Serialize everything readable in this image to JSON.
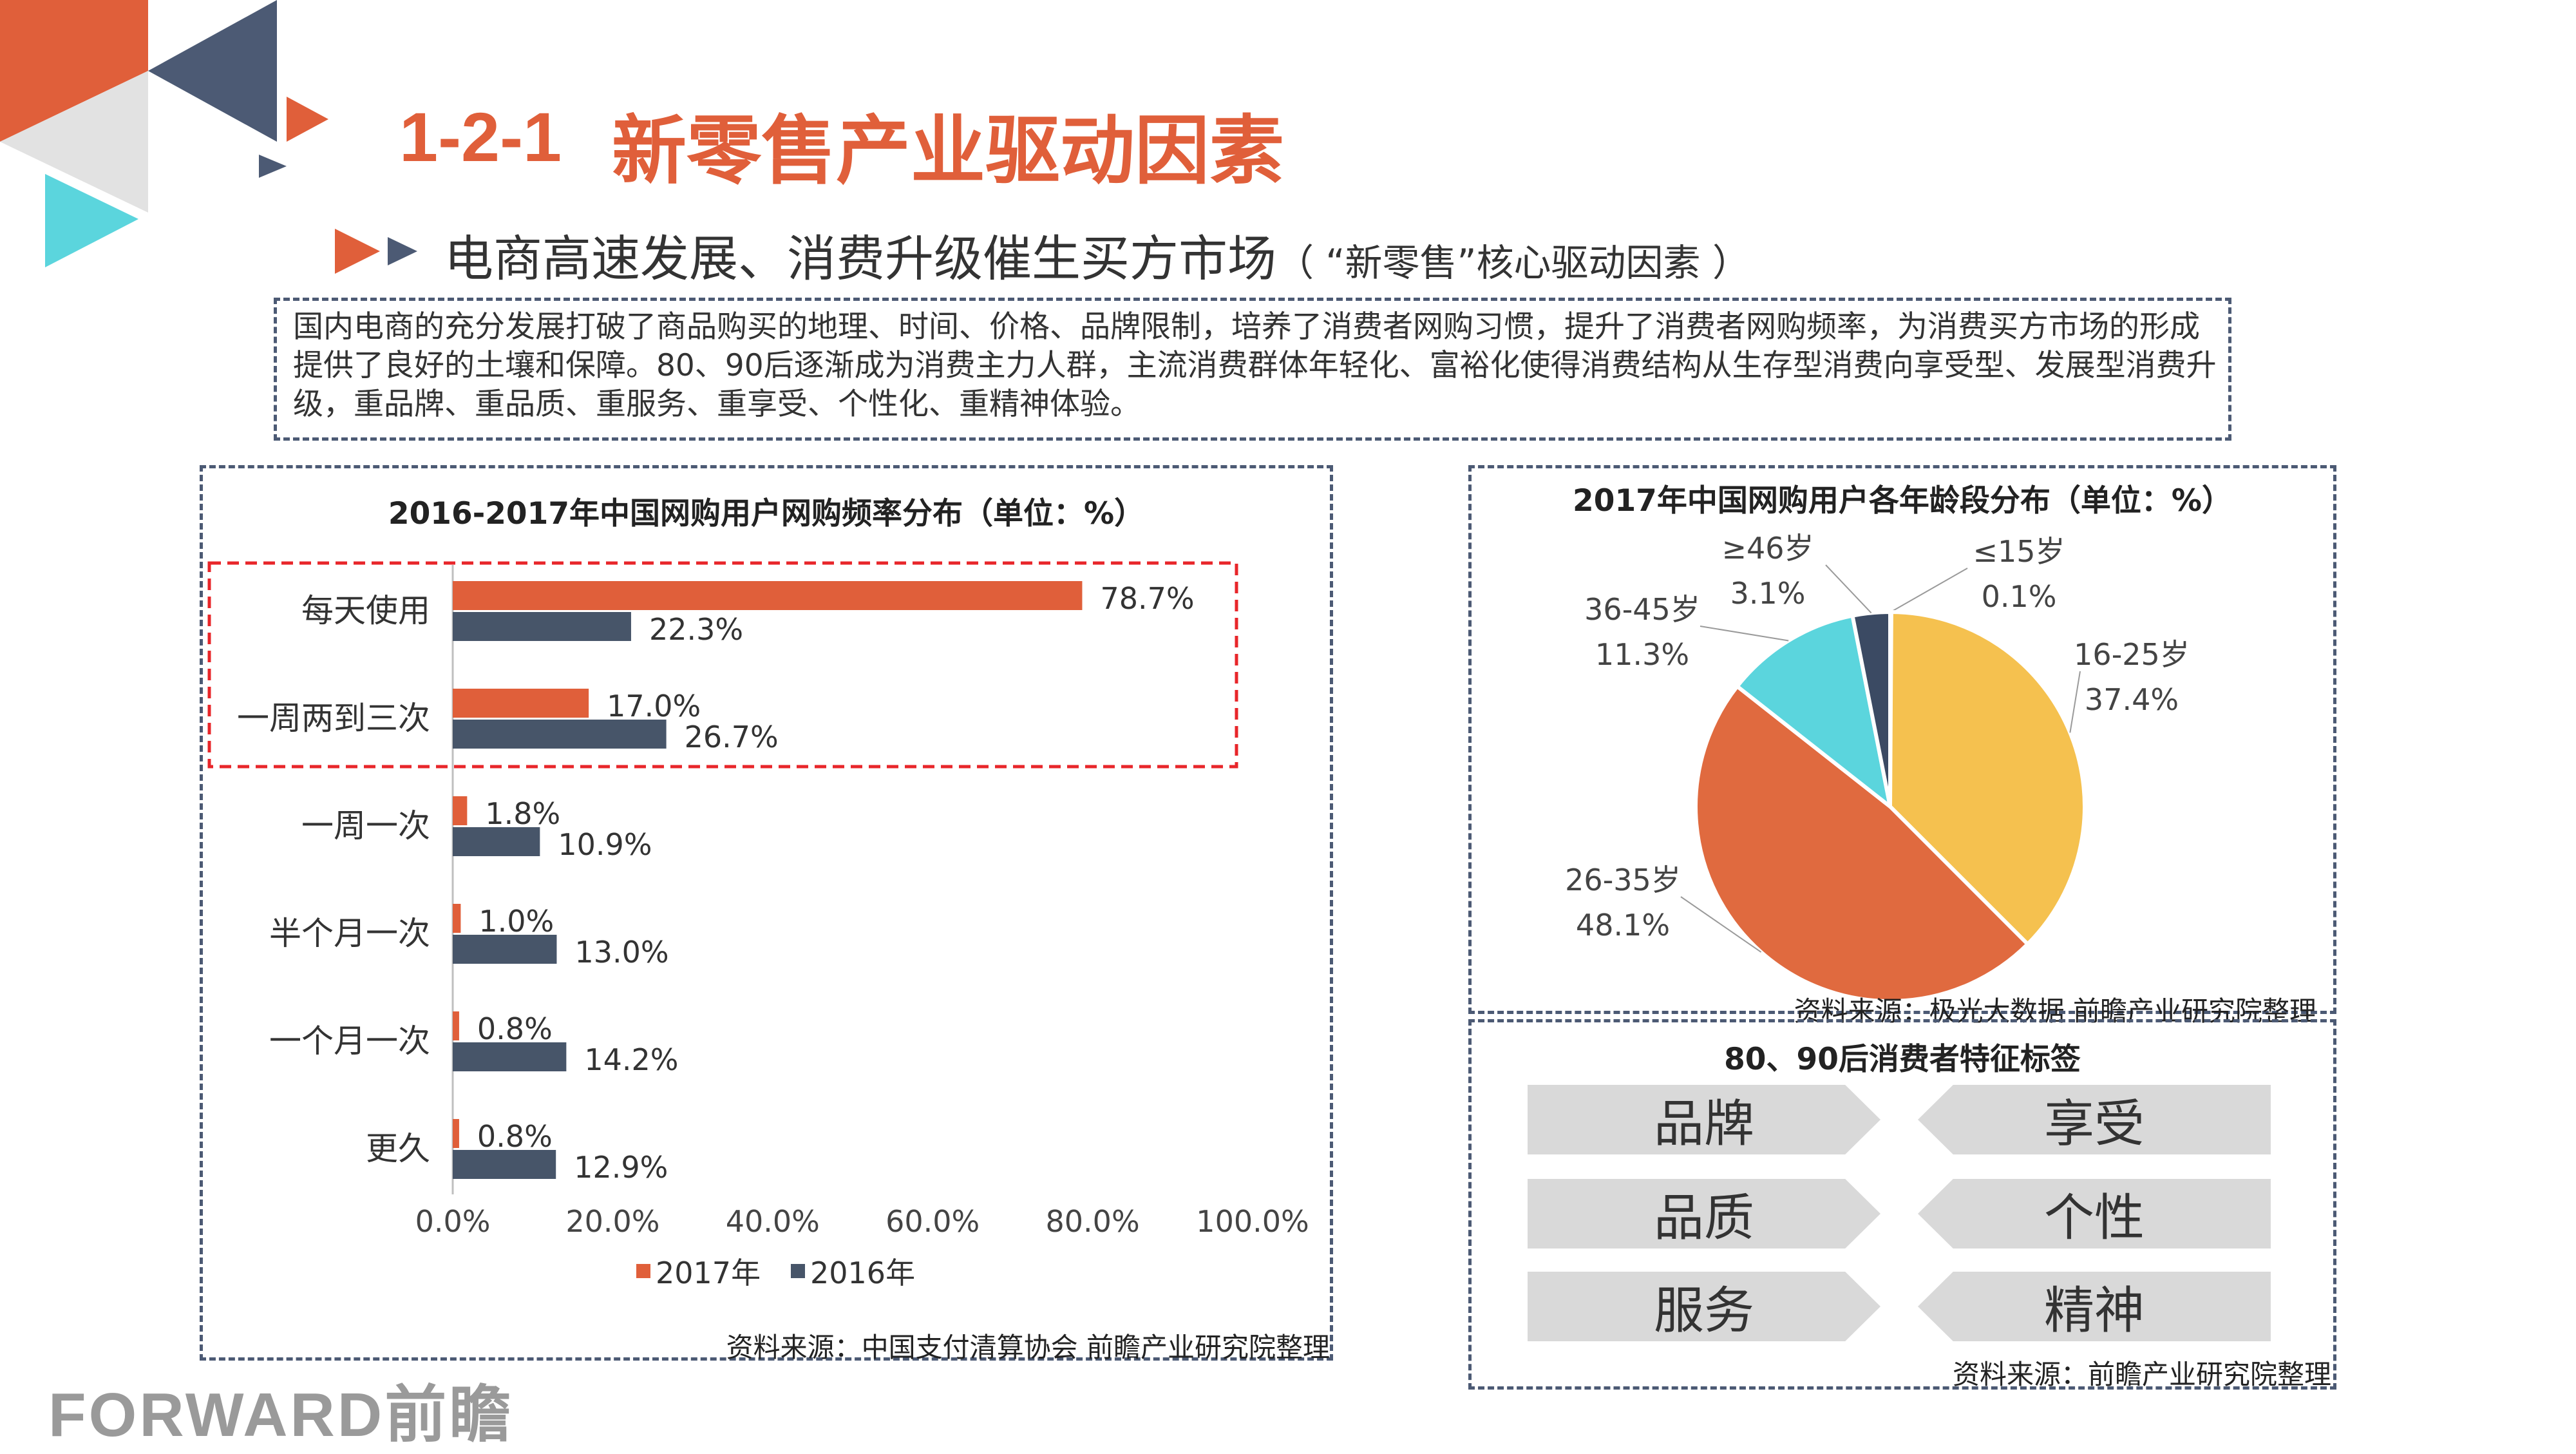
{
  "header": {
    "title_number": "1-2-1",
    "title_text": "新零售产业驱动因素",
    "subtitle_main": "电商高速发展、消费升级催生买方市场",
    "subtitle_paren": "（ “新零售”核心驱动因素 ）"
  },
  "intro": {
    "text": "国内电商的充分发展打破了商品购买的地理、时间、价格、品牌限制，培养了消费者网购习惯，提升了消费者网购频率，为消费买方市场的形成提供了良好的土壤和保障。80、90后逐渐成为消费主力人群，主流消费群体年轻化、富裕化使得消费结构从生存型消费向享受型、发展型消费升级，重品牌、重品质、重服务、重享受、个性化、重精神体验。"
  },
  "colors": {
    "accent_orange": "#e05f3a",
    "navy": "#475569",
    "pie_yellow": "#f5c14f",
    "pie_orange": "#e06a3f",
    "pie_cyan": "#5bd5dd",
    "pie_navy": "#3b4a63",
    "highlight_red": "#e8262a"
  },
  "chart_data": [
    {
      "type": "bar",
      "orientation": "horizontal",
      "title": "2016-2017年中国网购用户网购频率分布（单位：%）",
      "categories": [
        "每天使用",
        "一周两到三次",
        "一周一次",
        "半个月一次",
        "一个月一次",
        "更久"
      ],
      "series": [
        {
          "name": "2017年",
          "values": [
            78.7,
            17.0,
            1.8,
            1.0,
            0.8,
            0.8
          ],
          "labels": [
            "78.7%",
            "17.0%",
            "1.8%",
            "1.0%",
            "0.8%",
            "0.8%"
          ]
        },
        {
          "name": "2016年",
          "values": [
            22.3,
            26.7,
            10.9,
            13.0,
            14.2,
            12.9
          ],
          "labels": [
            "22.3%",
            "26.7%",
            "10.9%",
            "13.0%",
            "14.2%",
            "12.9%"
          ]
        }
      ],
      "xlim": [
        0,
        100
      ],
      "xticks": [
        "0.0%",
        "20.0%",
        "40.0%",
        "60.0%",
        "80.0%",
        "100.0%"
      ],
      "legend_position": "bottom",
      "highlighted_categories": [
        "每天使用",
        "一周两到三次"
      ],
      "source": "资料来源：中国支付清算协会 前瞻产业研究院整理"
    },
    {
      "type": "pie",
      "title": "2017年中国网购用户各年龄段分布（单位：%）",
      "slices": [
        {
          "label": "≤15岁",
          "value": 0.1,
          "value_label": "0.1%"
        },
        {
          "label": "16-25岁",
          "value": 37.4,
          "value_label": "37.4%"
        },
        {
          "label": "26-35岁",
          "value": 48.1,
          "value_label": "48.1%"
        },
        {
          "label": "36-45岁",
          "value": 11.3,
          "value_label": "11.3%"
        },
        {
          "label": "≥46岁",
          "value": 3.1,
          "value_label": "3.1%"
        }
      ],
      "source": "资料来源：极光大数据 前瞻产业研究院整理"
    }
  ],
  "tags": {
    "title": "80、90后消费者特征标签",
    "items": [
      "品牌",
      "享受",
      "品质",
      "个性",
      "服务",
      "精神"
    ],
    "source": "资料来源：前瞻产业研究院整理"
  },
  "footer": {
    "logo_latin": "FORWARD",
    "logo_cn": "前瞻"
  }
}
